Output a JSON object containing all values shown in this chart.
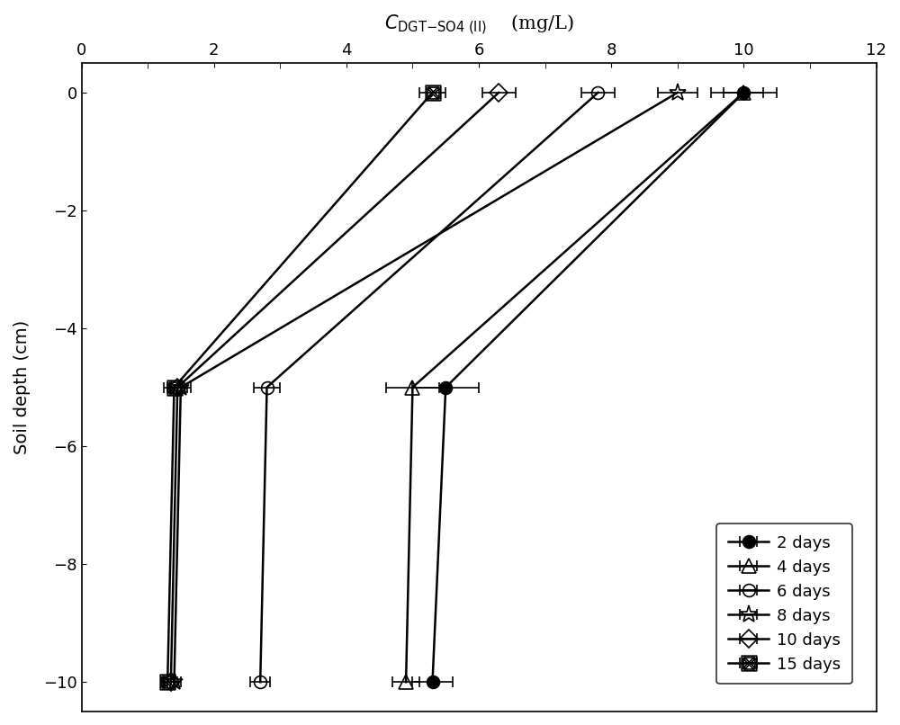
{
  "title": "$\\mathit{C}_{\\mathrm{DGT\\text{-}SO4\\ (II)}}$    (mg/L)",
  "xlabel_top": "$C_{\\mathrm{DGT-SO4\\ (II)}}$    (mg/L)",
  "ylabel": "Soil depth (cm)",
  "xlim": [
    0,
    12
  ],
  "ylim": [
    -10.5,
    0.5
  ],
  "xticks": [
    0,
    2,
    4,
    6,
    8,
    10,
    12
  ],
  "yticks": [
    0,
    -2,
    -4,
    -6,
    -8,
    -10
  ],
  "series": [
    {
      "label": "2 days",
      "marker": "o",
      "fillstyle": "full",
      "color": "black",
      "depths": [
        0,
        -5,
        -10
      ],
      "values": [
        10.0,
        5.5,
        5.3
      ],
      "xerr": [
        0.5,
        0.5,
        0.3
      ]
    },
    {
      "label": "4 days",
      "marker": "^",
      "fillstyle": "none",
      "color": "black",
      "depths": [
        0,
        -5,
        -10
      ],
      "values": [
        10.0,
        5.0,
        4.9
      ],
      "xerr": [
        0.3,
        0.4,
        0.2
      ]
    },
    {
      "label": "6 days",
      "marker": "o",
      "fillstyle": "none",
      "color": "black",
      "depths": [
        0,
        -5,
        -10
      ],
      "values": [
        7.8,
        2.8,
        2.7
      ],
      "xerr": [
        0.25,
        0.2,
        0.15
      ]
    },
    {
      "label": "8 days",
      "marker": "*",
      "fillstyle": "none",
      "color": "black",
      "depths": [
        0,
        -5,
        -10
      ],
      "values": [
        9.0,
        1.5,
        1.4
      ],
      "xerr": [
        0.3,
        0.15,
        0.1
      ]
    },
    {
      "label": "10 days",
      "marker": "D",
      "fillstyle": "none",
      "color": "black",
      "depths": [
        0,
        -5,
        -10
      ],
      "values": [
        6.3,
        1.45,
        1.35
      ],
      "xerr": [
        0.25,
        0.15,
        0.1
      ]
    },
    {
      "label": "15 days",
      "marker": "s",
      "fillstyle": "none",
      "color": "black",
      "depths": [
        0,
        -5,
        -10
      ],
      "values": [
        5.3,
        1.4,
        1.3
      ],
      "xerr": [
        0.2,
        0.15,
        0.1
      ]
    }
  ],
  "markersize": 10,
  "linewidth": 1.8,
  "background_color": "#ffffff"
}
